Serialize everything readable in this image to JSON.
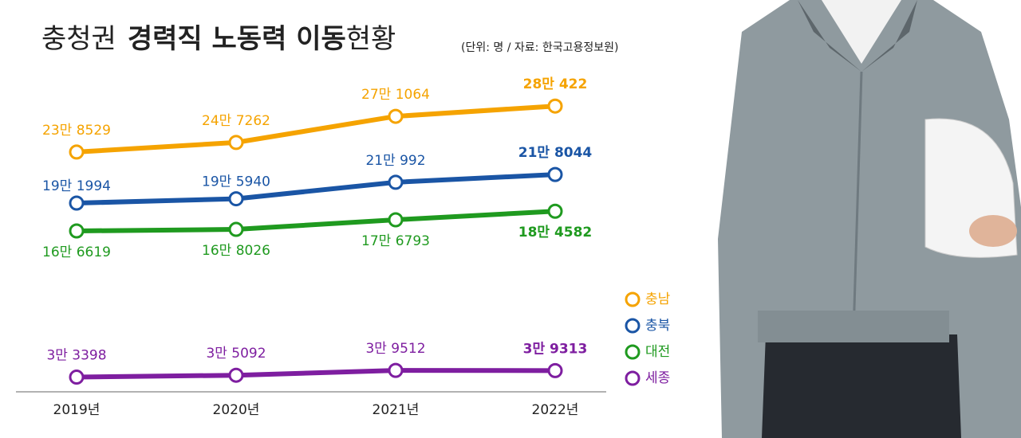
{
  "chart_data": {
    "type": "line",
    "title": [
      "충청권",
      "경력직 노동력 이동",
      "현황"
    ],
    "subtitle": "(단위: 명 / 자료: 한국고용정보원)",
    "categories": [
      "2019년",
      "2020년",
      "2021년",
      "2022년"
    ],
    "ylim": [
      20000,
      290000
    ],
    "series": [
      {
        "name": "충남",
        "color": "#f5a300",
        "values": [
          238529,
          247262,
          271064,
          280422
        ],
        "value_labels": [
          "23만 8529",
          "24만 7262",
          "27만 1064",
          "28만 422"
        ]
      },
      {
        "name": "충북",
        "color": "#1a55a5",
        "values": [
          191994,
          195940,
          210992,
          218044
        ],
        "value_labels": [
          "19만 1994",
          "19만 5940",
          "21만 992",
          "21만 8044"
        ]
      },
      {
        "name": "대전",
        "color": "#1f9a1f",
        "values": [
          166619,
          168026,
          176793,
          184582
        ],
        "value_labels": [
          "16만 6619",
          "16만 8026",
          "17만 6793",
          "18만 4582"
        ]
      },
      {
        "name": "세종",
        "color": "#7e1ea0",
        "values": [
          33398,
          35092,
          39512,
          39313
        ],
        "value_labels": [
          "3만 3398",
          "3만 5092",
          "3만 9512",
          "3만 9313"
        ]
      }
    ],
    "legend": "right"
  }
}
